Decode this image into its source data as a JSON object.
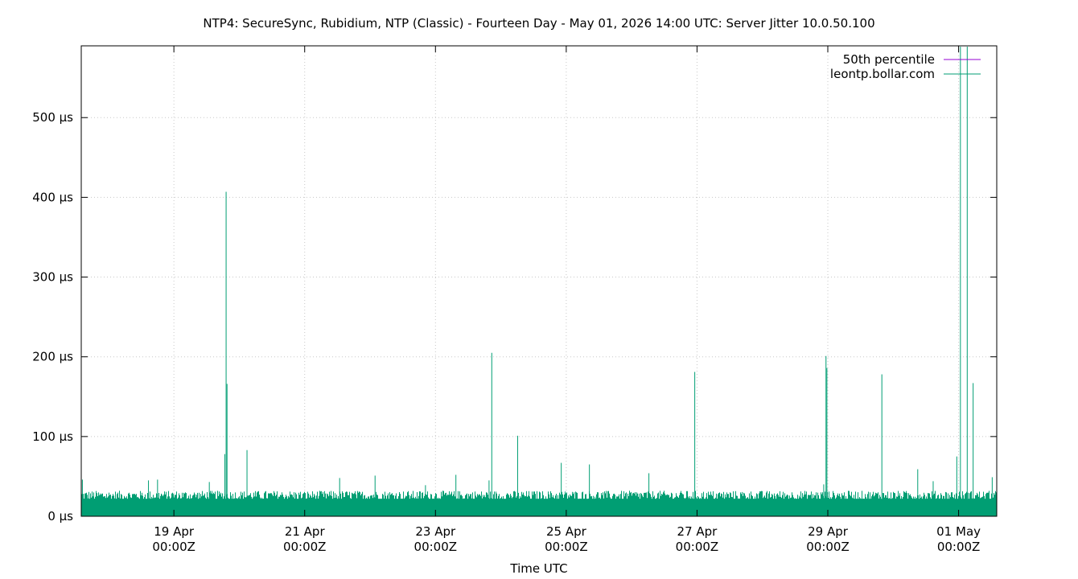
{
  "chart_data": {
    "type": "line",
    "title": "NTP4: SecureSync, Rubidium, NTP (Classic) - Fourteen Day - May 01, 2026 14:00 UTC: Server Jitter 10.0.50.100",
    "xlabel": "Time UTC",
    "ylabel": "",
    "y_unit": "µs",
    "ylim": [
      0,
      590
    ],
    "xlim": [
      "2026-04-17T14:00Z",
      "2026-05-01T14:00Z"
    ],
    "grid": true,
    "legend_position": "top-right",
    "y_ticks": [
      {
        "value": 0,
        "label": "0 µs"
      },
      {
        "value": 100,
        "label": "100 µs"
      },
      {
        "value": 200,
        "label": "200 µs"
      },
      {
        "value": 300,
        "label": "300 µs"
      },
      {
        "value": 400,
        "label": "400 µs"
      },
      {
        "value": 500,
        "label": "500 µs"
      }
    ],
    "x_ticks": [
      {
        "value": "2026-04-19T00:00Z",
        "line1": "19 Apr",
        "line2": "00:00Z"
      },
      {
        "value": "2026-04-21T00:00Z",
        "line1": "21 Apr",
        "line2": "00:00Z"
      },
      {
        "value": "2026-04-23T00:00Z",
        "line1": "23 Apr",
        "line2": "00:00Z"
      },
      {
        "value": "2026-04-25T00:00Z",
        "line1": "25 Apr",
        "line2": "00:00Z"
      },
      {
        "value": "2026-04-27T00:00Z",
        "line1": "27 Apr",
        "line2": "00:00Z"
      },
      {
        "value": "2026-04-29T00:00Z",
        "line1": "29 Apr",
        "line2": "00:00Z"
      },
      {
        "value": "2026-05-01T00:00Z",
        "line1": "01 May",
        "line2": "00:00Z"
      }
    ],
    "series": [
      {
        "name": "50th percentile",
        "color": "#9400d3",
        "values": []
      },
      {
        "name": "leontp.bollar.com",
        "color": "#009e73",
        "baseline_band": [
          0,
          30
        ],
        "spikes": [
          {
            "x": "2026-04-17T14:25Z",
            "y": 46
          },
          {
            "x": "2026-04-18T14:40Z",
            "y": 45
          },
          {
            "x": "2026-04-18T18:00Z",
            "y": 46
          },
          {
            "x": "2026-04-19T13:00Z",
            "y": 43
          },
          {
            "x": "2026-04-19T18:40Z",
            "y": 78
          },
          {
            "x": "2026-04-19T19:10Z",
            "y": 407
          },
          {
            "x": "2026-04-19T19:30Z",
            "y": 166
          },
          {
            "x": "2026-04-20T02:50Z",
            "y": 83
          },
          {
            "x": "2026-04-21T12:50Z",
            "y": 48
          },
          {
            "x": "2026-04-22T01:50Z",
            "y": 51
          },
          {
            "x": "2026-04-22T20:20Z",
            "y": 39
          },
          {
            "x": "2026-04-23T07:30Z",
            "y": 52
          },
          {
            "x": "2026-04-23T19:40Z",
            "y": 45
          },
          {
            "x": "2026-04-23T20:40Z",
            "y": 205
          },
          {
            "x": "2026-04-24T06:10Z",
            "y": 101
          },
          {
            "x": "2026-04-24T22:10Z",
            "y": 67
          },
          {
            "x": "2026-04-25T08:30Z",
            "y": 65
          },
          {
            "x": "2026-04-26T06:20Z",
            "y": 54
          },
          {
            "x": "2026-04-26T23:10Z",
            "y": 181
          },
          {
            "x": "2026-04-28T22:30Z",
            "y": 40
          },
          {
            "x": "2026-04-28T23:20Z",
            "y": 201
          },
          {
            "x": "2026-04-28T23:40Z",
            "y": 186
          },
          {
            "x": "2026-04-29T19:50Z",
            "y": 178
          },
          {
            "x": "2026-04-30T09:00Z",
            "y": 59
          },
          {
            "x": "2026-04-30T14:40Z",
            "y": 44
          },
          {
            "x": "2026-04-30T23:20Z",
            "y": 75
          },
          {
            "x": "2026-05-01T00:40Z",
            "y": 590
          },
          {
            "x": "2026-05-01T03:10Z",
            "y": 590
          },
          {
            "x": "2026-05-01T05:20Z",
            "y": 167
          },
          {
            "x": "2026-05-01T12:20Z",
            "y": 49
          }
        ]
      }
    ]
  }
}
